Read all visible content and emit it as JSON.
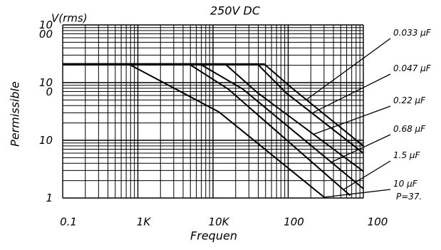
{
  "chart_data": {
    "type": "line",
    "title": "250V DC",
    "xlabel": "Frequen",
    "ylabel": "Permissible",
    "yunit": "V(rms)",
    "annotation": "P=37.",
    "log_x": true,
    "log_y": true,
    "grid": true,
    "xlim": [
      100,
      1000000
    ],
    "xticks": [
      {
        "value": 100,
        "label": "0.1"
      },
      {
        "value": 1000,
        "label": "1K"
      },
      {
        "value": 10000,
        "label": "10K"
      },
      {
        "value": 100000,
        "label": "100"
      },
      {
        "value": 1000000,
        "label": "100"
      }
    ],
    "ylim": [
      1,
      1000
    ],
    "yticks": [
      1,
      10,
      100,
      1000
    ],
    "series": [
      {
        "name": "0.033 μF",
        "color": "#000000",
        "x": [
          100,
          48000,
          117000,
          1000000
        ],
        "values": [
          210,
          210,
          77,
          8
        ]
      },
      {
        "name": "0.047 μF",
        "color": "#000000",
        "x": [
          100,
          39000,
          93000,
          1000000
        ],
        "values": [
          210,
          210,
          67,
          6
        ]
      },
      {
        "name": "0.22 μF",
        "color": "#000000",
        "x": [
          100,
          14500,
          39000,
          1000000
        ],
        "values": [
          210,
          210,
          67,
          2.9
        ]
      },
      {
        "name": "0.68 μF",
        "color": "#000000",
        "x": [
          100,
          6700,
          25000,
          1000000
        ],
        "values": [
          210,
          210,
          77,
          1.45
        ]
      },
      {
        "name": "1.5 μF",
        "color": "#000000",
        "x": [
          100,
          4800,
          16000,
          670000
        ],
        "values": [
          210,
          210,
          77,
          1.1
        ]
      },
      {
        "name": "10 μF",
        "color": "#000000",
        "x": [
          100,
          750,
          12000,
          310000
        ],
        "values": [
          210,
          210,
          31,
          1
        ]
      }
    ]
  }
}
